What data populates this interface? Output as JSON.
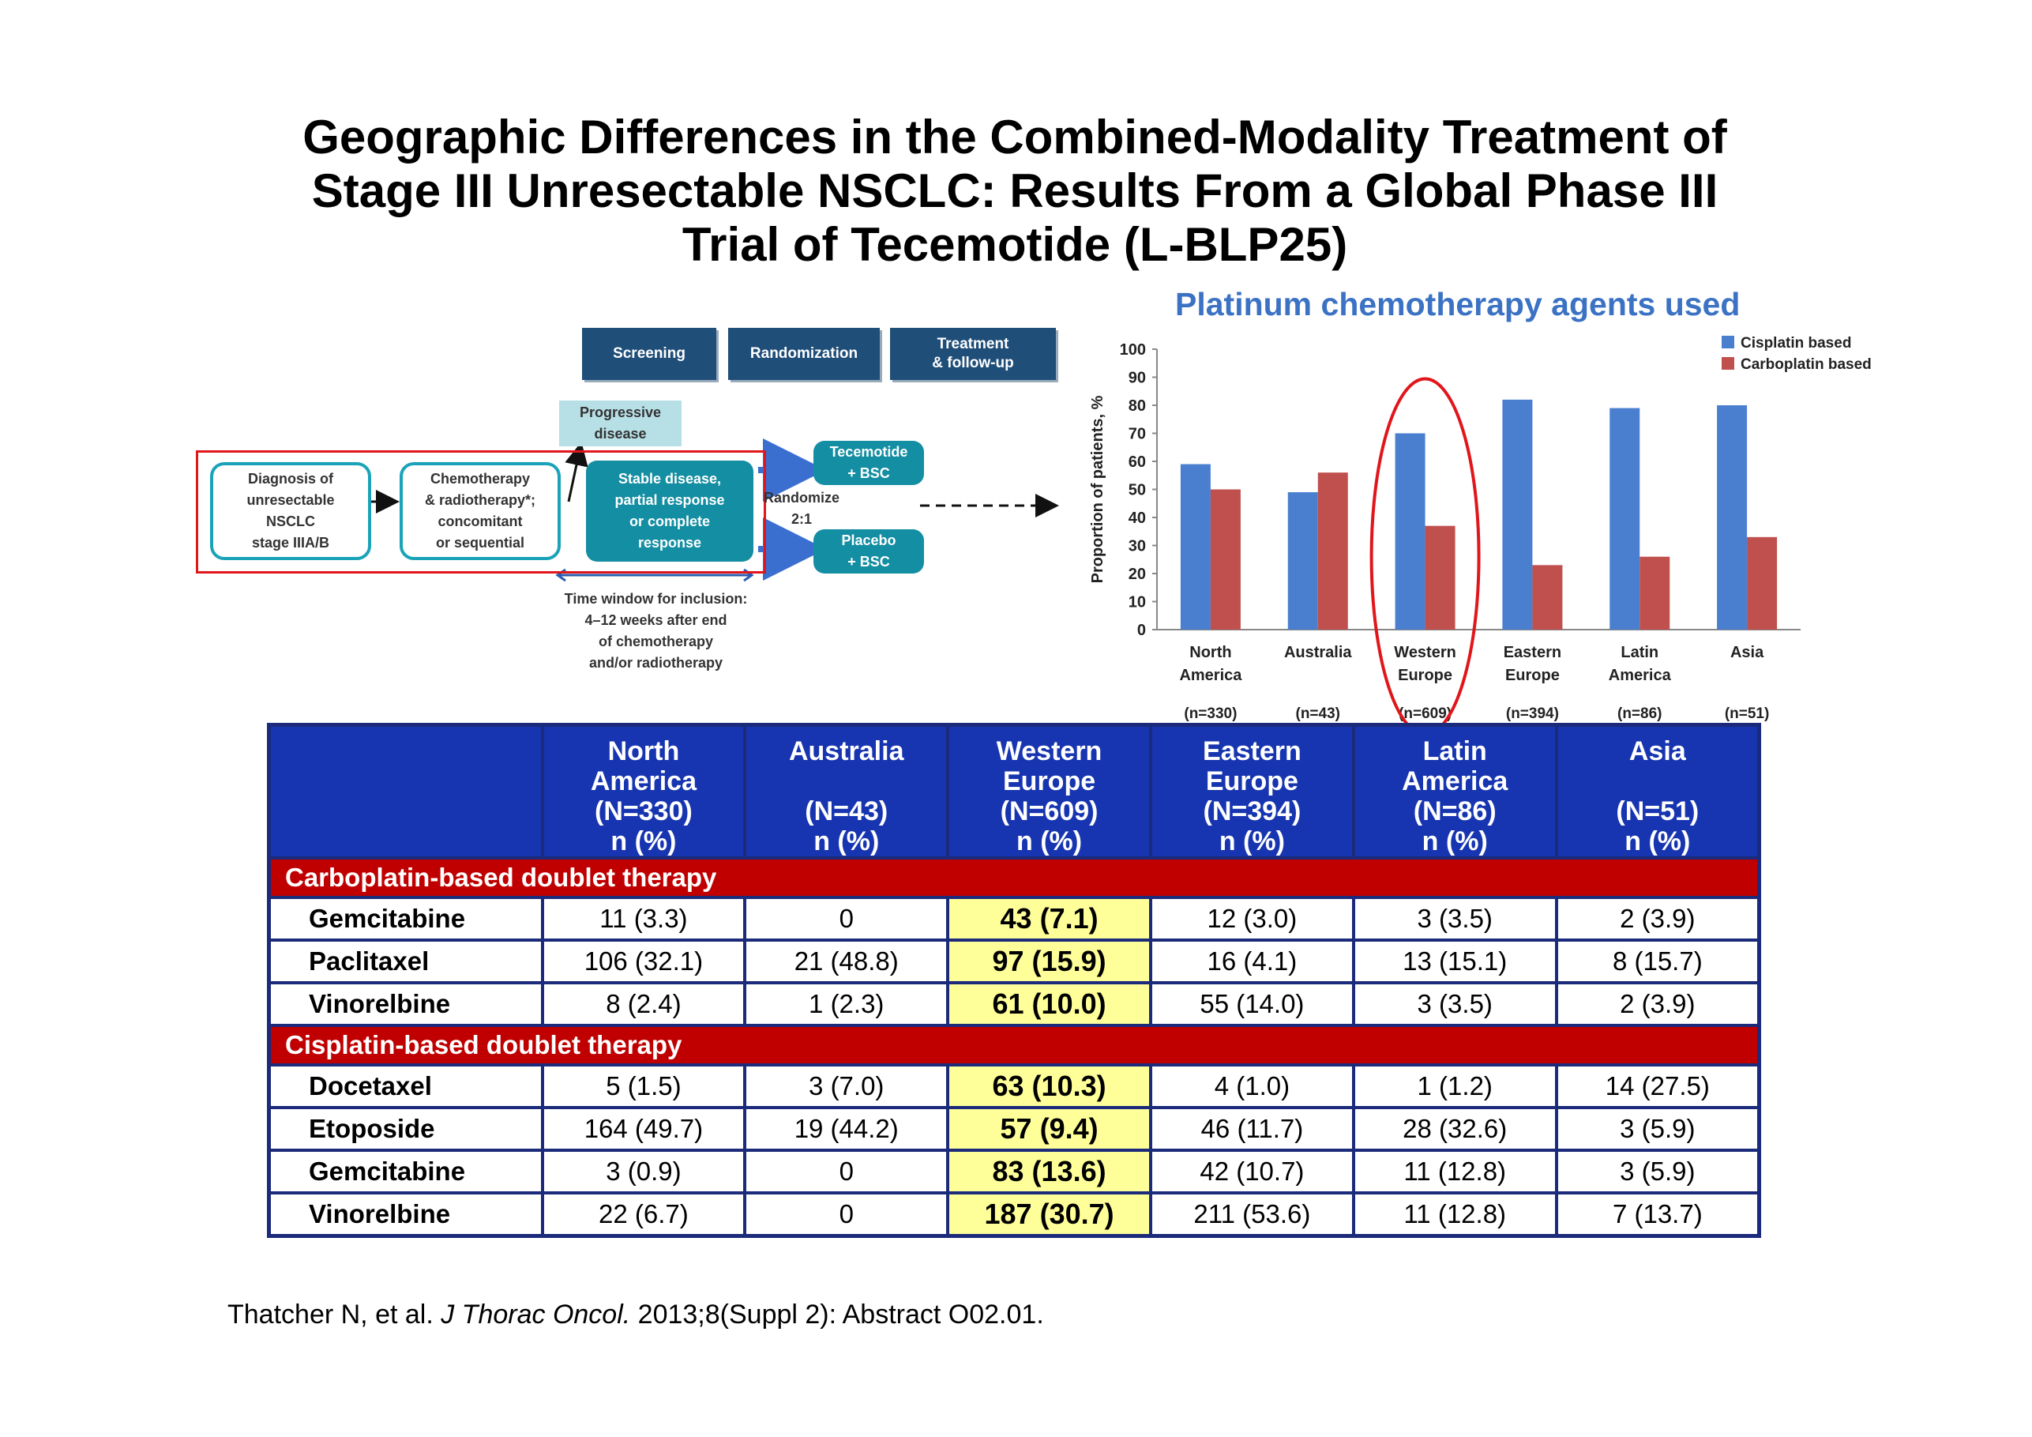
{
  "title": {
    "line1": "Geographic Differences in the Combined-Modality Treatment of",
    "line2": "Stage III Unresectable NSCLC: Results From a Global Phase III",
    "line3": "Trial of Tecemotide (L-BLP25)"
  },
  "diagram": {
    "headers": [
      "Screening",
      "Randomization",
      "Treatment\n& follow-up"
    ],
    "progressive": "Progressive\ndisease",
    "diagnosis": "Diagnosis of\nunresectable\nNSCLC\nstage IIIA/B",
    "chemo": "Chemotherapy\n& radiotherapy*;\nconcomitant\nor sequential",
    "stable": "Stable disease,\npartial response\nor complete\nresponse",
    "randomize": "Randomize\n2:1",
    "tecemotide": "Tecemotide\n+ BSC",
    "placebo": "Placebo\n+ BSC",
    "time_window": "Time window for inclusion:\n4–12 weeks after end\nof chemotherapy\nand/or radiotherapy"
  },
  "chart_data": {
    "type": "bar",
    "title": "Platinum chemotherapy agents used",
    "ylabel": "Proportion of patients, %",
    "ylim": [
      0,
      100
    ],
    "yticks": [
      0,
      10,
      20,
      30,
      40,
      50,
      60,
      70,
      80,
      90,
      100
    ],
    "categories": [
      "North\nAmerica",
      "Australia",
      "Western\nEurope",
      "Eastern\nEurope",
      "Latin\nAmerica",
      "Asia"
    ],
    "ns": [
      "(n=330)",
      "(n=43)",
      "(n=609)",
      "(n=394)",
      "(n=86)",
      "(n=51)"
    ],
    "series": [
      {
        "name": "Cisplatin based",
        "color": "#4a7fd0",
        "values": [
          59,
          49,
          70,
          82,
          79,
          80
        ]
      },
      {
        "name": "Carboplatin based",
        "color": "#c0504d",
        "values": [
          50,
          56,
          37,
          23,
          26,
          33
        ]
      }
    ],
    "highlight_category": 2,
    "highlight_color": "#e0161b"
  },
  "table": {
    "headers": [
      [
        "North",
        "America",
        "(N=330)",
        "n (%)"
      ],
      [
        "Australia",
        "",
        "(N=43)",
        "n (%)"
      ],
      [
        "Western",
        "Europe",
        "(N=609)",
        "n (%)"
      ],
      [
        "Eastern",
        "Europe",
        "(N=394)",
        "n (%)"
      ],
      [
        "Latin",
        "America",
        "(N=86)",
        "n (%)"
      ],
      [
        "Asia",
        "",
        "(N=51)",
        "n (%)"
      ]
    ],
    "sections": [
      {
        "label": "Carboplatin-based doublet therapy",
        "rows": [
          {
            "drug": "Gemcitabine",
            "cells": [
              "11 (3.3)",
              "0",
              "43 (7.1)",
              "12 (3.0)",
              "3 (3.5)",
              "2 (3.9)"
            ]
          },
          {
            "drug": "Paclitaxel",
            "cells": [
              "106 (32.1)",
              "21 (48.8)",
              "97 (15.9)",
              "16 (4.1)",
              "13 (15.1)",
              "8 (15.7)"
            ]
          },
          {
            "drug": "Vinorelbine",
            "cells": [
              "8 (2.4)",
              "1 (2.3)",
              "61 (10.0)",
              "55 (14.0)",
              "3 (3.5)",
              "2 (3.9)"
            ]
          }
        ]
      },
      {
        "label": "Cisplatin-based doublet therapy",
        "rows": [
          {
            "drug": "Docetaxel",
            "cells": [
              "5 (1.5)",
              "3 (7.0)",
              "63 (10.3)",
              "4 (1.0)",
              "1 (1.2)",
              "14 (27.5)"
            ]
          },
          {
            "drug": "Etoposide",
            "cells": [
              "164 (49.7)",
              "19 (44.2)",
              "57 (9.4)",
              "46 (11.7)",
              "28 (32.6)",
              "3 (5.9)"
            ]
          },
          {
            "drug": "Gemcitabine",
            "cells": [
              "3 (0.9)",
              "0",
              "83 (13.6)",
              "42 (10.7)",
              "11 (12.8)",
              "3 (5.9)"
            ]
          },
          {
            "drug": "Vinorelbine",
            "cells": [
              "22 (6.7)",
              "0",
              "187 (30.7)",
              "211 (53.6)",
              "11 (12.8)",
              "7 (13.7)"
            ]
          }
        ]
      }
    ]
  },
  "citation": {
    "authors": "Thatcher N, et al. ",
    "journal": "J Thorac Oncol.",
    "rest": " 2013;8(Suppl 2): Abstract O02.01."
  }
}
